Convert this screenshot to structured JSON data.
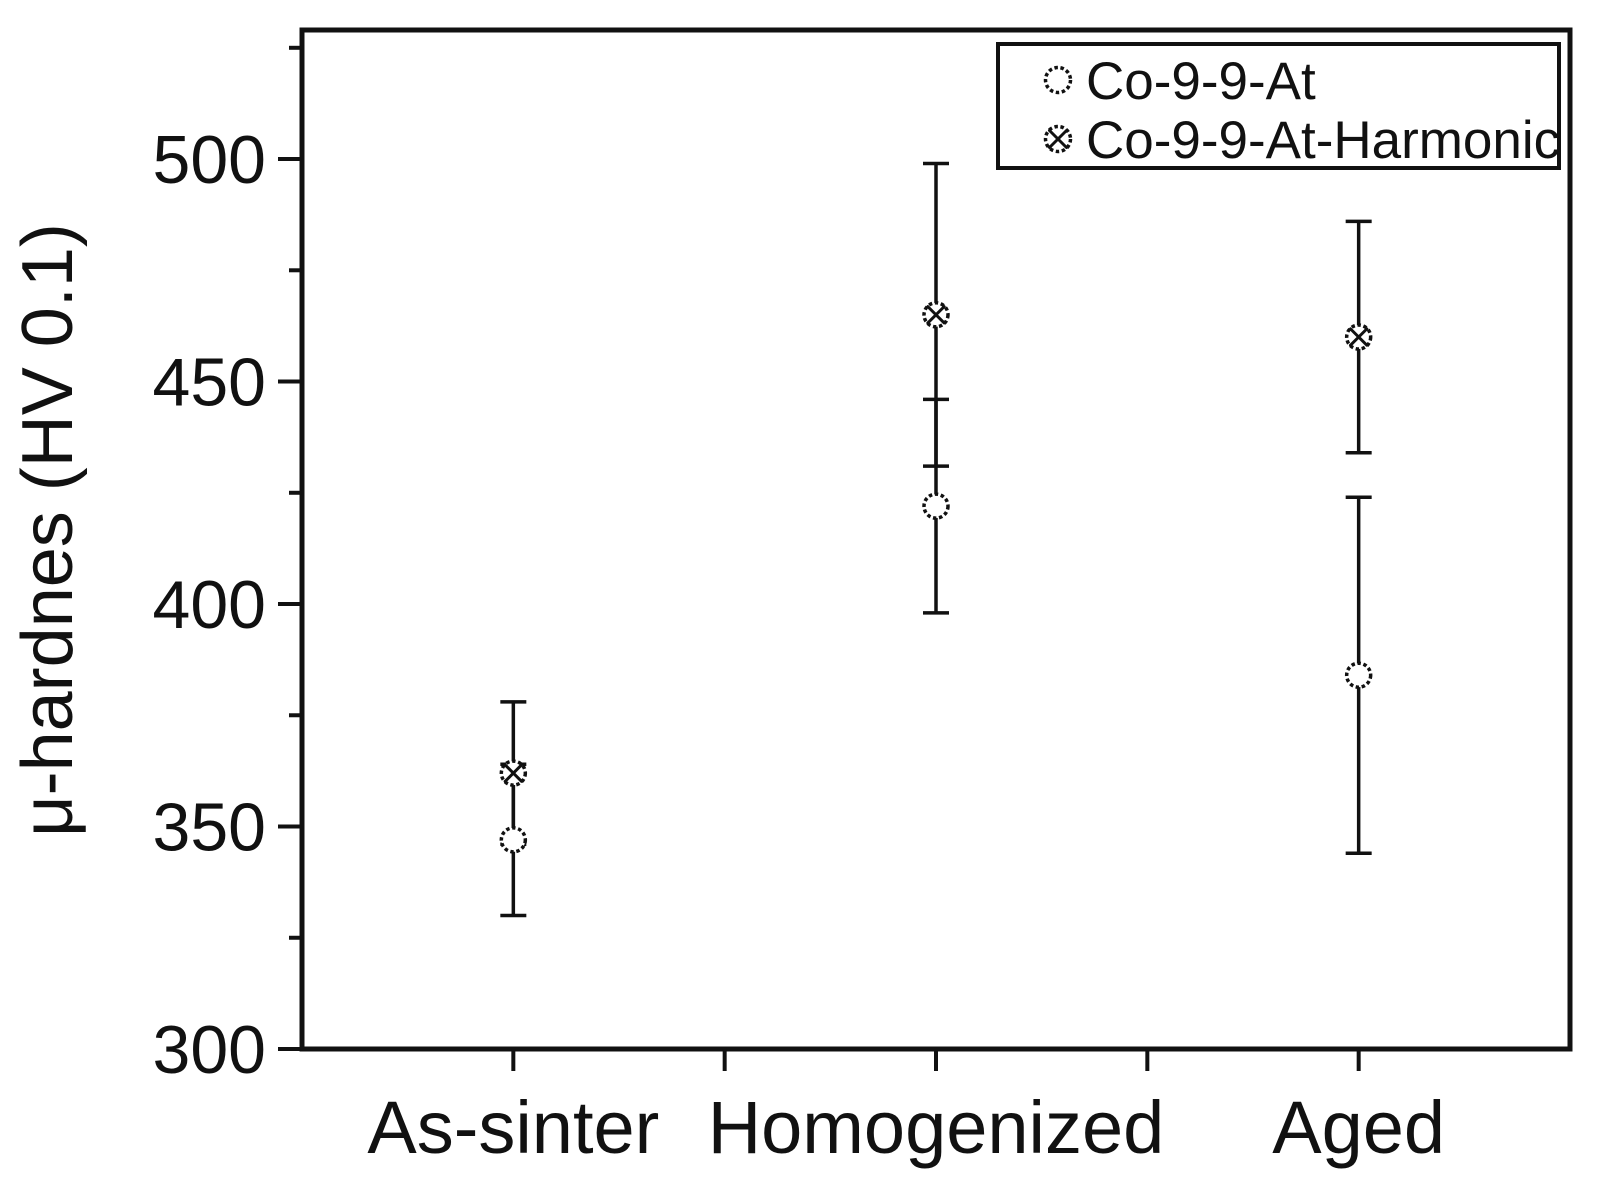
{
  "chart_data": {
    "type": "scatter",
    "title": "",
    "xlabel": "",
    "ylabel": "μ-hardnes (HV 0.1)",
    "categories": [
      "As-sinter",
      "Homogenized",
      "Aged"
    ],
    "y_ticks": [
      300,
      350,
      400,
      450,
      500
    ],
    "y_minor_ticks": [
      325,
      375,
      425,
      475,
      525
    ],
    "ylim": [
      300,
      529
    ],
    "grid": false,
    "legend_position": "top-right",
    "series": [
      {
        "name": "Co-9-9-At",
        "marker": "open-circle",
        "values": [
          347,
          422,
          384
        ],
        "errors": [
          17,
          24,
          40
        ]
      },
      {
        "name": "Co-9-9-At-Harmonic",
        "marker": "crossed-circle",
        "values": [
          362,
          465,
          460
        ],
        "errors": [
          16,
          34,
          26
        ]
      }
    ],
    "colors": {
      "foreground": "#111111",
      "background": "#ffffff"
    }
  }
}
